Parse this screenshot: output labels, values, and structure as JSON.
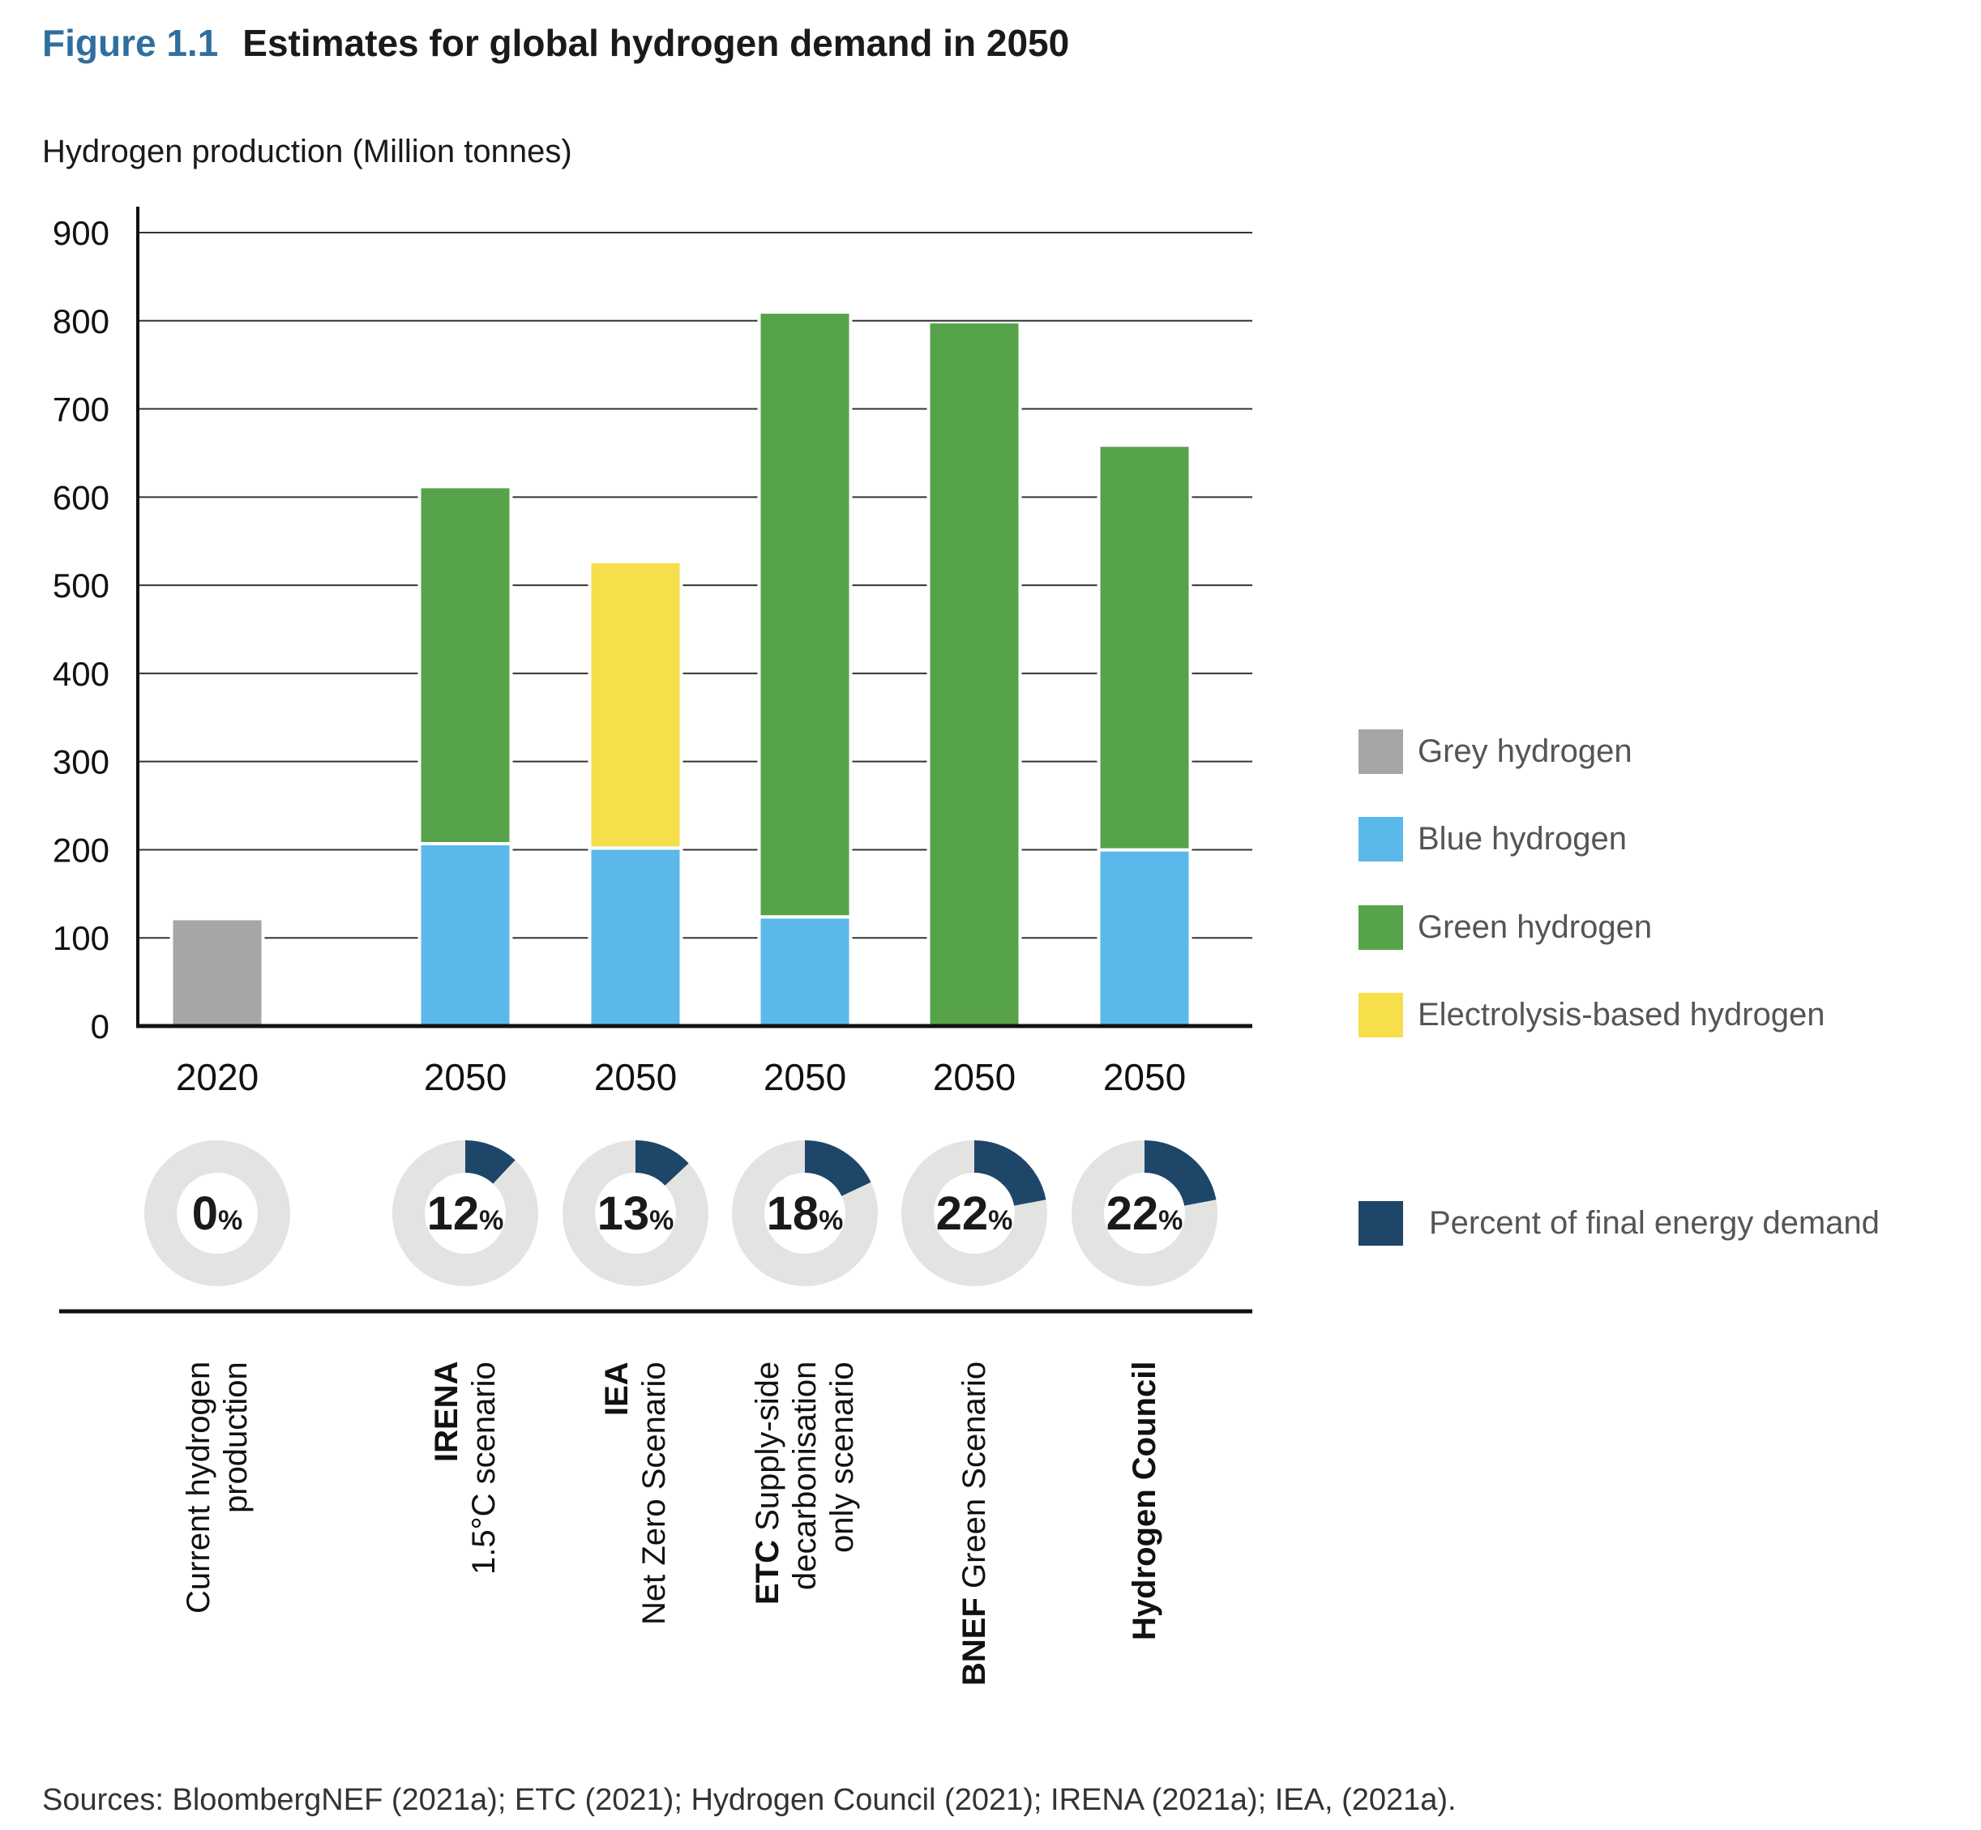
{
  "title": {
    "figure": "Figure 1.1",
    "text": "Estimates for global hydrogen demand in 2050"
  },
  "colors": {
    "grey": "#a6a6a6",
    "blue": "#5bb8ea",
    "green": "#57a349",
    "electrolysis": "#f7de4b",
    "percent": "#1e4669",
    "donut_bg": "#e3e3e2",
    "title_accent": "#2f6f9f"
  },
  "chart_data": {
    "type": "bar",
    "stacked": true,
    "ylabel": "Hydrogen production (Million tonnes)",
    "ylim": [
      0,
      900
    ],
    "yticks": [
      "0",
      "100",
      "200",
      "300",
      "400",
      "500",
      "600",
      "700",
      "800",
      "900"
    ],
    "grid": true,
    "legend_position": "right",
    "categories": [
      "2020",
      "2050",
      "2050",
      "2050",
      "2050",
      "2050"
    ],
    "category_labels": [
      [
        [
          "",
          "Current hydrogen"
        ],
        [
          "",
          "production"
        ]
      ],
      [
        [
          "IRENA",
          ""
        ],
        [
          "",
          "1.5°C scenario"
        ]
      ],
      [
        [
          "IEA",
          ""
        ],
        [
          "",
          "Net Zero Scenario"
        ]
      ],
      [
        [
          "ETC",
          " Supply-side"
        ],
        [
          "",
          "decarbonisation"
        ],
        [
          "",
          "only scenario"
        ]
      ],
      [
        [
          "BNEF",
          " Green Scenario"
        ]
      ],
      [
        [
          "Hydrogen Council",
          ""
        ]
      ]
    ],
    "series": [
      {
        "name": "Grey hydrogen",
        "color_key": "grey",
        "values": [
          120,
          0,
          0,
          0,
          0,
          0
        ]
      },
      {
        "name": "Blue hydrogen",
        "color_key": "blue",
        "values": [
          0,
          205,
          200,
          122,
          0,
          198
        ]
      },
      {
        "name": "Green hydrogen",
        "color_key": "green",
        "values": [
          0,
          405,
          0,
          686,
          797,
          459
        ]
      },
      {
        "name": "Electrolysis-based hydrogen",
        "color_key": "electrolysis",
        "values": [
          0,
          0,
          325,
          0,
          0,
          0
        ]
      }
    ],
    "percent_of_final_energy_demand": {
      "name": "Percent of final energy demand",
      "values": [
        0,
        12,
        13,
        18,
        22,
        22
      ],
      "labels": [
        "0",
        "12",
        "13",
        "18",
        "22",
        "22"
      ],
      "suffix": "%"
    }
  },
  "sources": "Sources: BloombergNEF (2021a); ETC (2021); Hydrogen Council (2021); IRENA (2021a); IEA, (2021a)."
}
